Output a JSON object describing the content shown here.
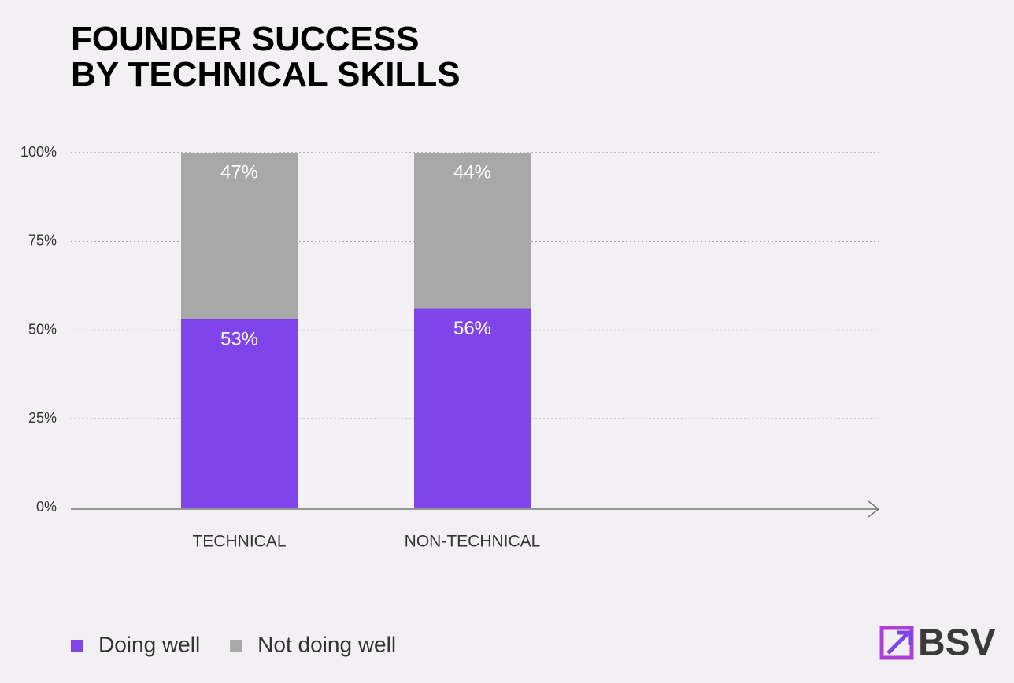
{
  "chart_data": {
    "type": "stacked-bar",
    "title": [
      "FOUNDER SUCCESS",
      "BY TECHNICAL SKILLS"
    ],
    "categories": [
      "TECHNICAL",
      "NON-TECHNICAL"
    ],
    "series": [
      {
        "name": "Doing well",
        "color": "#7f45ea",
        "values": [
          53,
          56
        ],
        "value_labels": [
          "53%",
          "56%"
        ]
      },
      {
        "name": "Not doing well",
        "color": "#a8a8a8",
        "values": [
          47,
          44
        ],
        "value_labels": [
          "47%",
          "44%"
        ]
      }
    ],
    "ylim": [
      0,
      100
    ],
    "yticks": [
      {
        "value": 0,
        "label": "0%"
      },
      {
        "value": 25,
        "label": "25%"
      },
      {
        "value": 50,
        "label": "50%"
      },
      {
        "value": 75,
        "label": "75%"
      },
      {
        "value": 100,
        "label": "100%"
      }
    ],
    "grid": true,
    "legend": "bottom-left",
    "logo": "BSV"
  }
}
